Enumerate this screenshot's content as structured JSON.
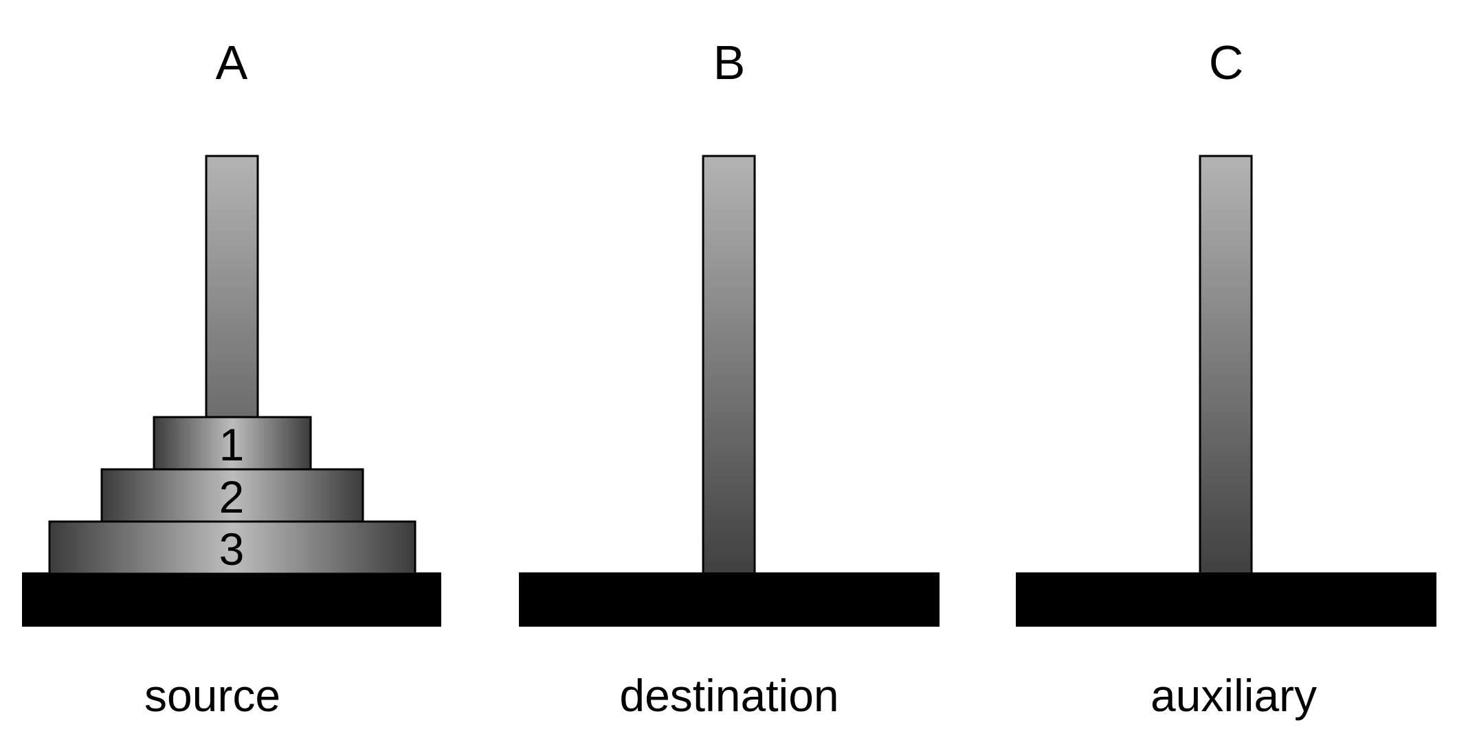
{
  "pegs": [
    {
      "id": "A",
      "letter": "A",
      "role": "source"
    },
    {
      "id": "B",
      "letter": "B",
      "role": "destination"
    },
    {
      "id": "C",
      "letter": "C",
      "role": "auxiliary"
    }
  ],
  "disks": [
    {
      "label": "1",
      "peg": "A",
      "size_rank": 1
    },
    {
      "label": "2",
      "peg": "A",
      "size_rank": 2
    },
    {
      "label": "3",
      "peg": "A",
      "size_rank": 3
    }
  ],
  "colors": {
    "base": "#000000",
    "outline": "#000000",
    "rod_top": "#b4b4b4",
    "rod_bottom": "#404040",
    "disk_center": "#bdbdbd",
    "disk_edge": "#3c3c3c",
    "background": "#ffffff"
  }
}
